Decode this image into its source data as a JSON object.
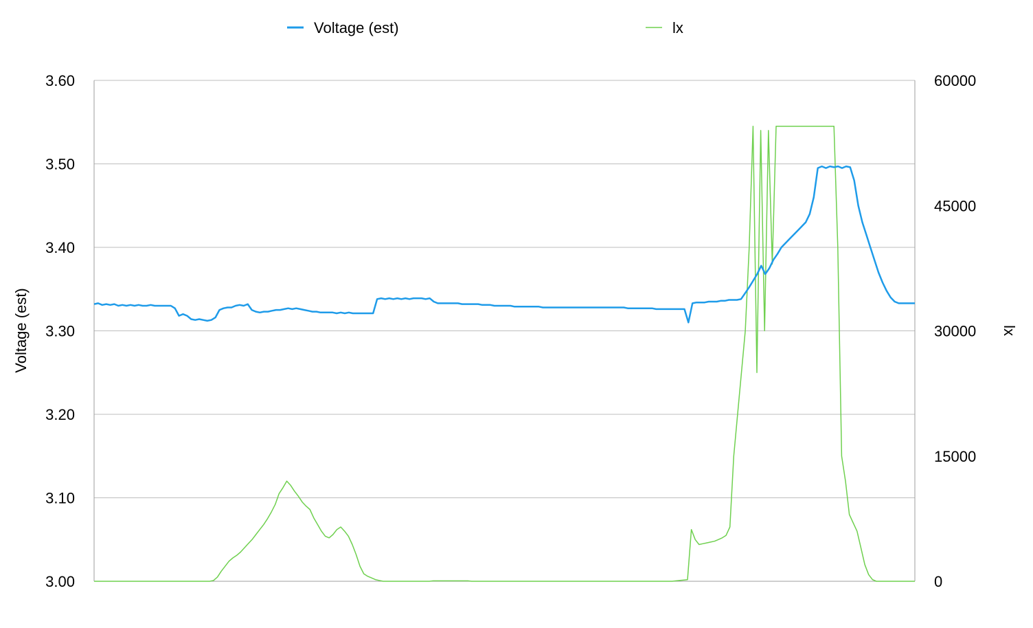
{
  "chart_data": {
    "type": "line",
    "xlabel": "",
    "ylabel": "Voltage (est)",
    "y2label": "lx",
    "ylim": [
      3.0,
      3.6
    ],
    "y2lim": [
      0,
      60000
    ],
    "yticks": [
      "3.00",
      "3.10",
      "3.20",
      "3.30",
      "3.40",
      "3.50",
      "3.60"
    ],
    "y2ticks": [
      "0",
      "15000",
      "30000",
      "45000",
      "60000"
    ],
    "grid": true,
    "legend_position": "top",
    "x_points": 200,
    "series": [
      {
        "name": "Voltage (est)",
        "axis": "left",
        "color": "#1E9BE9",
        "values": [
          3.332,
          3.333,
          3.331,
          3.332,
          3.331,
          3.332,
          3.33,
          3.331,
          3.33,
          3.331,
          3.33,
          3.331,
          3.33,
          3.33,
          3.331,
          3.33,
          3.33,
          3.33,
          3.33,
          3.33,
          3.327,
          3.318,
          3.32,
          3.318,
          3.314,
          3.313,
          3.314,
          3.313,
          3.312,
          3.313,
          3.316,
          3.325,
          3.327,
          3.328,
          3.328,
          3.33,
          3.331,
          3.33,
          3.332,
          3.325,
          3.323,
          3.322,
          3.323,
          3.323,
          3.324,
          3.325,
          3.325,
          3.326,
          3.327,
          3.326,
          3.327,
          3.326,
          3.325,
          3.324,
          3.323,
          3.323,
          3.322,
          3.322,
          3.322,
          3.322,
          3.321,
          3.322,
          3.321,
          3.322,
          3.321,
          3.321,
          3.321,
          3.321,
          3.321,
          3.321,
          3.338,
          3.339,
          3.338,
          3.339,
          3.338,
          3.339,
          3.338,
          3.339,
          3.338,
          3.339,
          3.339,
          3.339,
          3.338,
          3.339,
          3.335,
          3.333,
          3.333,
          3.333,
          3.333,
          3.333,
          3.333,
          3.332,
          3.332,
          3.332,
          3.332,
          3.332,
          3.331,
          3.331,
          3.331,
          3.33,
          3.33,
          3.33,
          3.33,
          3.33,
          3.329,
          3.329,
          3.329,
          3.329,
          3.329,
          3.329,
          3.329,
          3.328,
          3.328,
          3.328,
          3.328,
          3.328,
          3.328,
          3.328,
          3.328,
          3.328,
          3.328,
          3.328,
          3.328,
          3.328,
          3.328,
          3.328,
          3.328,
          3.328,
          3.328,
          3.328,
          3.328,
          3.328,
          3.327,
          3.327,
          3.327,
          3.327,
          3.327,
          3.327,
          3.327,
          3.326,
          3.326,
          3.326,
          3.326,
          3.326,
          3.326,
          3.326,
          3.326,
          3.31,
          3.333,
          3.334,
          3.334,
          3.334,
          3.335,
          3.335,
          3.335,
          3.336,
          3.336,
          3.337,
          3.337,
          3.337,
          3.338,
          3.345,
          3.352,
          3.36,
          3.368,
          3.378,
          3.368,
          3.375,
          3.385,
          3.392,
          3.4,
          3.405,
          3.41,
          3.415,
          3.42,
          3.425,
          3.43,
          3.44,
          3.46,
          3.495,
          3.497,
          3.495,
          3.497,
          3.496,
          3.497,
          3.495,
          3.497,
          3.496,
          3.48,
          3.45,
          3.43,
          3.415,
          3.4,
          3.385,
          3.37,
          3.358,
          3.348,
          3.34,
          3.335,
          3.333,
          3.333,
          3.333,
          3.333,
          3.333
        ]
      },
      {
        "name": "lx",
        "axis": "right",
        "color": "#6FD04F",
        "values": [
          0,
          0,
          0,
          0,
          0,
          0,
          0,
          0,
          0,
          0,
          0,
          0,
          0,
          0,
          0,
          0,
          0,
          0,
          0,
          0,
          0,
          0,
          0,
          0,
          0,
          0,
          0,
          0,
          0,
          0,
          0,
          100,
          500,
          1200,
          1800,
          2400,
          2800,
          3100,
          3500,
          4000,
          4500,
          5000,
          5600,
          6200,
          6800,
          7500,
          8300,
          9200,
          10500,
          11200,
          12000,
          11500,
          10800,
          10200,
          9500,
          9000,
          8600,
          7600,
          6800,
          6000,
          5400,
          5200,
          5600,
          6200,
          6500,
          6000,
          5400,
          4400,
          3200,
          1800,
          900,
          600,
          400,
          200,
          100,
          0,
          0,
          0,
          0,
          0,
          0,
          0,
          0,
          0,
          0,
          0,
          0,
          0,
          50,
          50,
          50,
          50,
          50,
          50,
          50,
          50,
          50,
          50,
          0,
          0,
          0,
          0,
          0,
          0,
          0,
          0,
          0,
          0,
          0,
          0,
          0,
          0,
          0,
          0,
          0,
          0,
          0,
          0,
          0,
          0,
          0,
          0,
          0,
          0,
          0,
          0,
          0,
          0,
          0,
          0,
          0,
          0,
          0,
          0,
          0,
          0,
          0,
          0,
          0,
          0,
          0,
          0,
          0,
          0,
          0,
          0,
          0,
          0,
          0,
          0,
          0,
          50,
          100,
          150,
          200,
          6200,
          5000,
          4400,
          4500,
          4600,
          4700,
          4800,
          5000,
          5200,
          5500,
          6500,
          15000,
          20000,
          25000,
          30000,
          40000,
          54500,
          25000,
          54000,
          30000,
          54000,
          38000,
          54500,
          54500,
          54500,
          54500,
          54500,
          54500,
          54500,
          54500,
          54500,
          54500,
          54500,
          54500,
          54500,
          54500,
          54500,
          54500,
          40000,
          15000,
          12000,
          8000,
          7000,
          6000,
          4000,
          2000,
          800,
          200,
          0,
          0,
          0,
          0,
          0,
          0,
          0,
          0,
          0,
          0,
          0
        ]
      }
    ]
  }
}
